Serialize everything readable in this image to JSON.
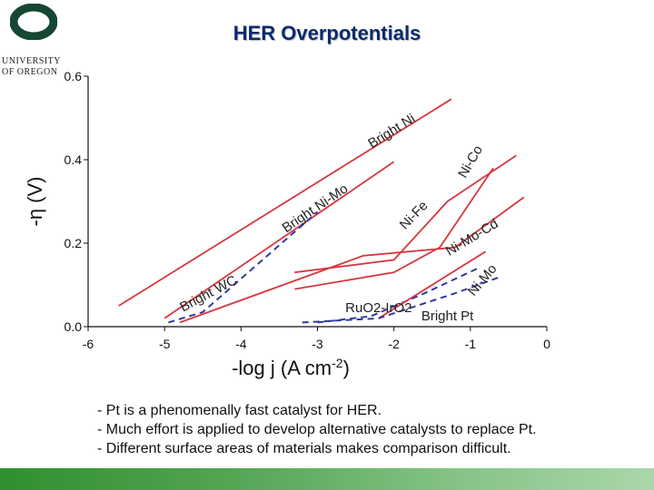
{
  "slide": {
    "title": "HER Overpotentials",
    "logo_line1": "UNIVERSITY",
    "logo_line2": "OF OREGON",
    "bullets": [
      "- Pt is a phenomenally fast catalyst for HER.",
      "- Much effort is applied to develop alternative catalysts to replace Pt.",
      "- Different surface areas of materials makes comparison difficult."
    ],
    "colors": {
      "title": "#0b2a6e",
      "logo": "#154733",
      "bar": "#54a454"
    }
  },
  "chart_data": {
    "type": "line",
    "title": "",
    "xlabel": "-log j (A cm",
    "xlabel_sup": "-2",
    "xlabel_close": ")",
    "ylabel": "-η (V)",
    "xlim": [
      -6,
      0
    ],
    "ylim": [
      0,
      0.6
    ],
    "x_ticks": [
      "-6",
      "-5",
      "-4",
      "-3",
      "-2",
      "-1",
      "0"
    ],
    "y_ticks": [
      "0.0",
      "0.2",
      "0.4",
      "0.6"
    ],
    "x_tick_values": [
      -6,
      -5,
      -4,
      -3,
      -2,
      -1,
      0
    ],
    "y_tick_values": [
      0,
      0.2,
      0.4,
      0.6
    ],
    "colors": {
      "solid": "#d7373f",
      "dashed": "#2f3aa0"
    },
    "series": [
      {
        "name": "Bright Ni",
        "style": "solid",
        "points": [
          [
            -5.6,
            0.05
          ],
          [
            -1.25,
            0.545
          ]
        ]
      },
      {
        "name": "Bright Ni-Mo",
        "style": "solid",
        "points": [
          [
            -5,
            0.02
          ],
          [
            -2,
            0.395
          ]
        ]
      },
      {
        "name": "Bright WC",
        "style": "dashed",
        "points": [
          [
            -4.95,
            0.01
          ],
          [
            -4.5,
            0.035
          ],
          [
            -3,
            0.275
          ]
        ]
      },
      {
        "name": "Ni-Co",
        "style": "solid",
        "points": [
          [
            -3.3,
            0.13
          ],
          [
            -2,
            0.16
          ],
          [
            -1.3,
            0.3
          ],
          [
            -0.4,
            0.41
          ]
        ]
      },
      {
        "name": "Ni-Fe",
        "style": "solid",
        "points": [
          [
            -3.3,
            0.09
          ],
          [
            -2,
            0.13
          ],
          [
            -1.4,
            0.19
          ],
          [
            -0.7,
            0.38
          ]
        ]
      },
      {
        "name": "Ni-Mo-Cd",
        "style": "solid",
        "points": [
          [
            -4.8,
            0.01
          ],
          [
            -2.4,
            0.17
          ],
          [
            -1.2,
            0.19
          ],
          [
            -0.3,
            0.31
          ]
        ]
      },
      {
        "name": "RuO2-IrO2",
        "style": "dashed",
        "points": [
          [
            -3,
            0.01
          ],
          [
            -2.3,
            0.025
          ],
          [
            -1.6,
            0.08
          ],
          [
            -0.9,
            0.14
          ]
        ]
      },
      {
        "name": "Ni-Mo",
        "style": "solid",
        "points": [
          [
            -2.2,
            0.02
          ],
          [
            -0.8,
            0.18
          ]
        ]
      },
      {
        "name": "Bright Pt",
        "style": "dashed",
        "points": [
          [
            -3.2,
            0.01
          ],
          [
            -2.2,
            0.02
          ],
          [
            -1.2,
            0.08
          ],
          [
            -0.6,
            0.12
          ]
        ]
      }
    ],
    "labels": [
      {
        "text": "Bright Ni",
        "x": -2.0,
        "y": 0.46,
        "angle": -32
      },
      {
        "text": "Ni-Co",
        "x": -0.95,
        "y": 0.39,
        "angle": -60
      },
      {
        "text": "Bright Ni-Mo",
        "x": -3.0,
        "y": 0.275,
        "angle": -34
      },
      {
        "text": "Ni-Fe",
        "x": -1.7,
        "y": 0.26,
        "angle": -46
      },
      {
        "text": "Ni-Mo-Cd",
        "x": -0.95,
        "y": 0.205,
        "angle": -31
      },
      {
        "text": "Bright WC",
        "x": -4.4,
        "y": 0.07,
        "angle": -28
      },
      {
        "text": "RuO2-IrO2",
        "x": -2.2,
        "y": 0.035,
        "angle": 0
      },
      {
        "text": "Bright Pt",
        "x": -1.3,
        "y": 0.015,
        "angle": 0
      },
      {
        "text": "Ni-Mo",
        "x": -0.8,
        "y": 0.105,
        "angle": -50
      }
    ]
  }
}
